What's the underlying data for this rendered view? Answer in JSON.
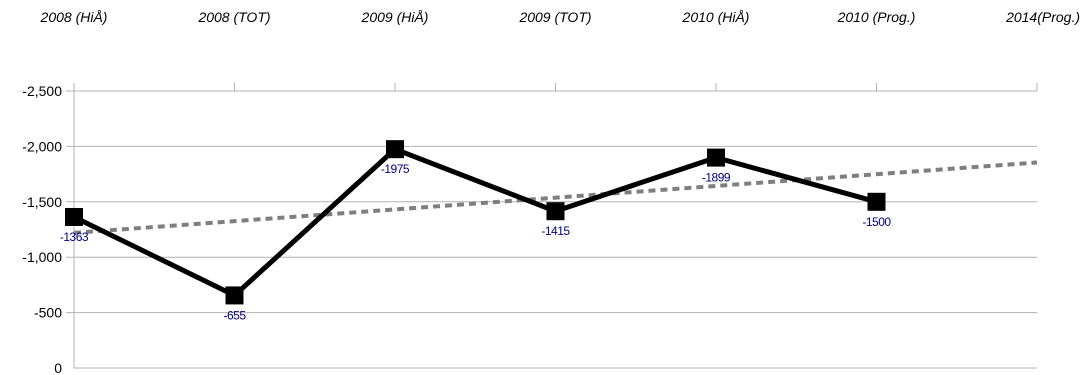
{
  "chart_data": {
    "type": "line",
    "title": "",
    "xlabel": "",
    "ylabel": "",
    "categories": [
      "2008 (HiÅ)",
      "2008 (TOT)",
      "2009 (HiÅ)",
      "2009 (TOT)",
      "2010 (HiÅ)",
      "2010 (Prog.)",
      "2014(Prog.)"
    ],
    "y_reversed": true,
    "ylim": [
      0,
      -2500
    ],
    "yticks": [
      0,
      -500,
      -1000,
      -1500,
      -2000,
      -2500
    ],
    "ytick_labels": [
      "0",
      "-500",
      "-1,000",
      "-1,500",
      "-2,000",
      "-2,500"
    ],
    "x_axis_position": "top",
    "grid": "horizontal",
    "legend": "none",
    "series": [
      {
        "values": [
          -1363,
          -655,
          -1975,
          -1415,
          -1899,
          -1500,
          null
        ],
        "data_labels": [
          "-1363",
          "-655",
          "-1975",
          "-1415",
          "-1899",
          "-1500",
          ""
        ],
        "color": "#000000",
        "marker": "square"
      }
    ],
    "trendline": {
      "type": "linear",
      "style": "dotted",
      "color": "#7f7f7f",
      "start_value": -1220,
      "end_value": -1855
    }
  }
}
